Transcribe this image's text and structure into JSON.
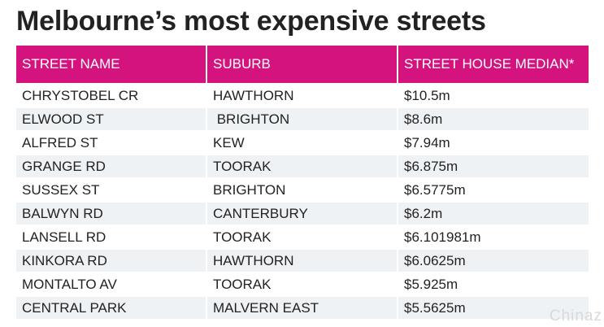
{
  "title": "Melbourne’s most expensive streets",
  "table": {
    "headers": [
      "STREET NAME",
      "SUBURB",
      "STREET HOUSE MEDIAN*"
    ],
    "header_color": "#d4137f",
    "stripe_color": "#eff2f5",
    "rows": [
      {
        "street": "CHRYSTOBEL CR",
        "suburb": "HAWTHORN",
        "median": "$10.5m"
      },
      {
        "street": "ELWOOD ST",
        "suburb": " BRIGHTON",
        "median": "$8.6m"
      },
      {
        "street": "ALFRED ST",
        "suburb": "KEW",
        "median": "$7.94m"
      },
      {
        "street": "GRANGE RD",
        "suburb": "TOORAK",
        "median": "$6.875m"
      },
      {
        "street": "SUSSEX ST",
        "suburb": "BRIGHTON",
        "median": "$6.5775m"
      },
      {
        "street": "BALWYN RD",
        "suburb": "CANTERBURY",
        "median": "$6.2m"
      },
      {
        "street": "LANSELL RD",
        "suburb": "TOORAK",
        "median": "$6.101981m"
      },
      {
        "street": "KINKORA RD",
        "suburb": "HAWTHORN",
        "median": "$6.0625m"
      },
      {
        "street": "MONTALTO AV",
        "suburb": "TOORAK",
        "median": "$5.925m"
      },
      {
        "street": "CENTRAL PARK",
        "suburb": "MALVERN EAST",
        "median": "$5.5625m"
      }
    ]
  },
  "watermark": "Chinaz"
}
